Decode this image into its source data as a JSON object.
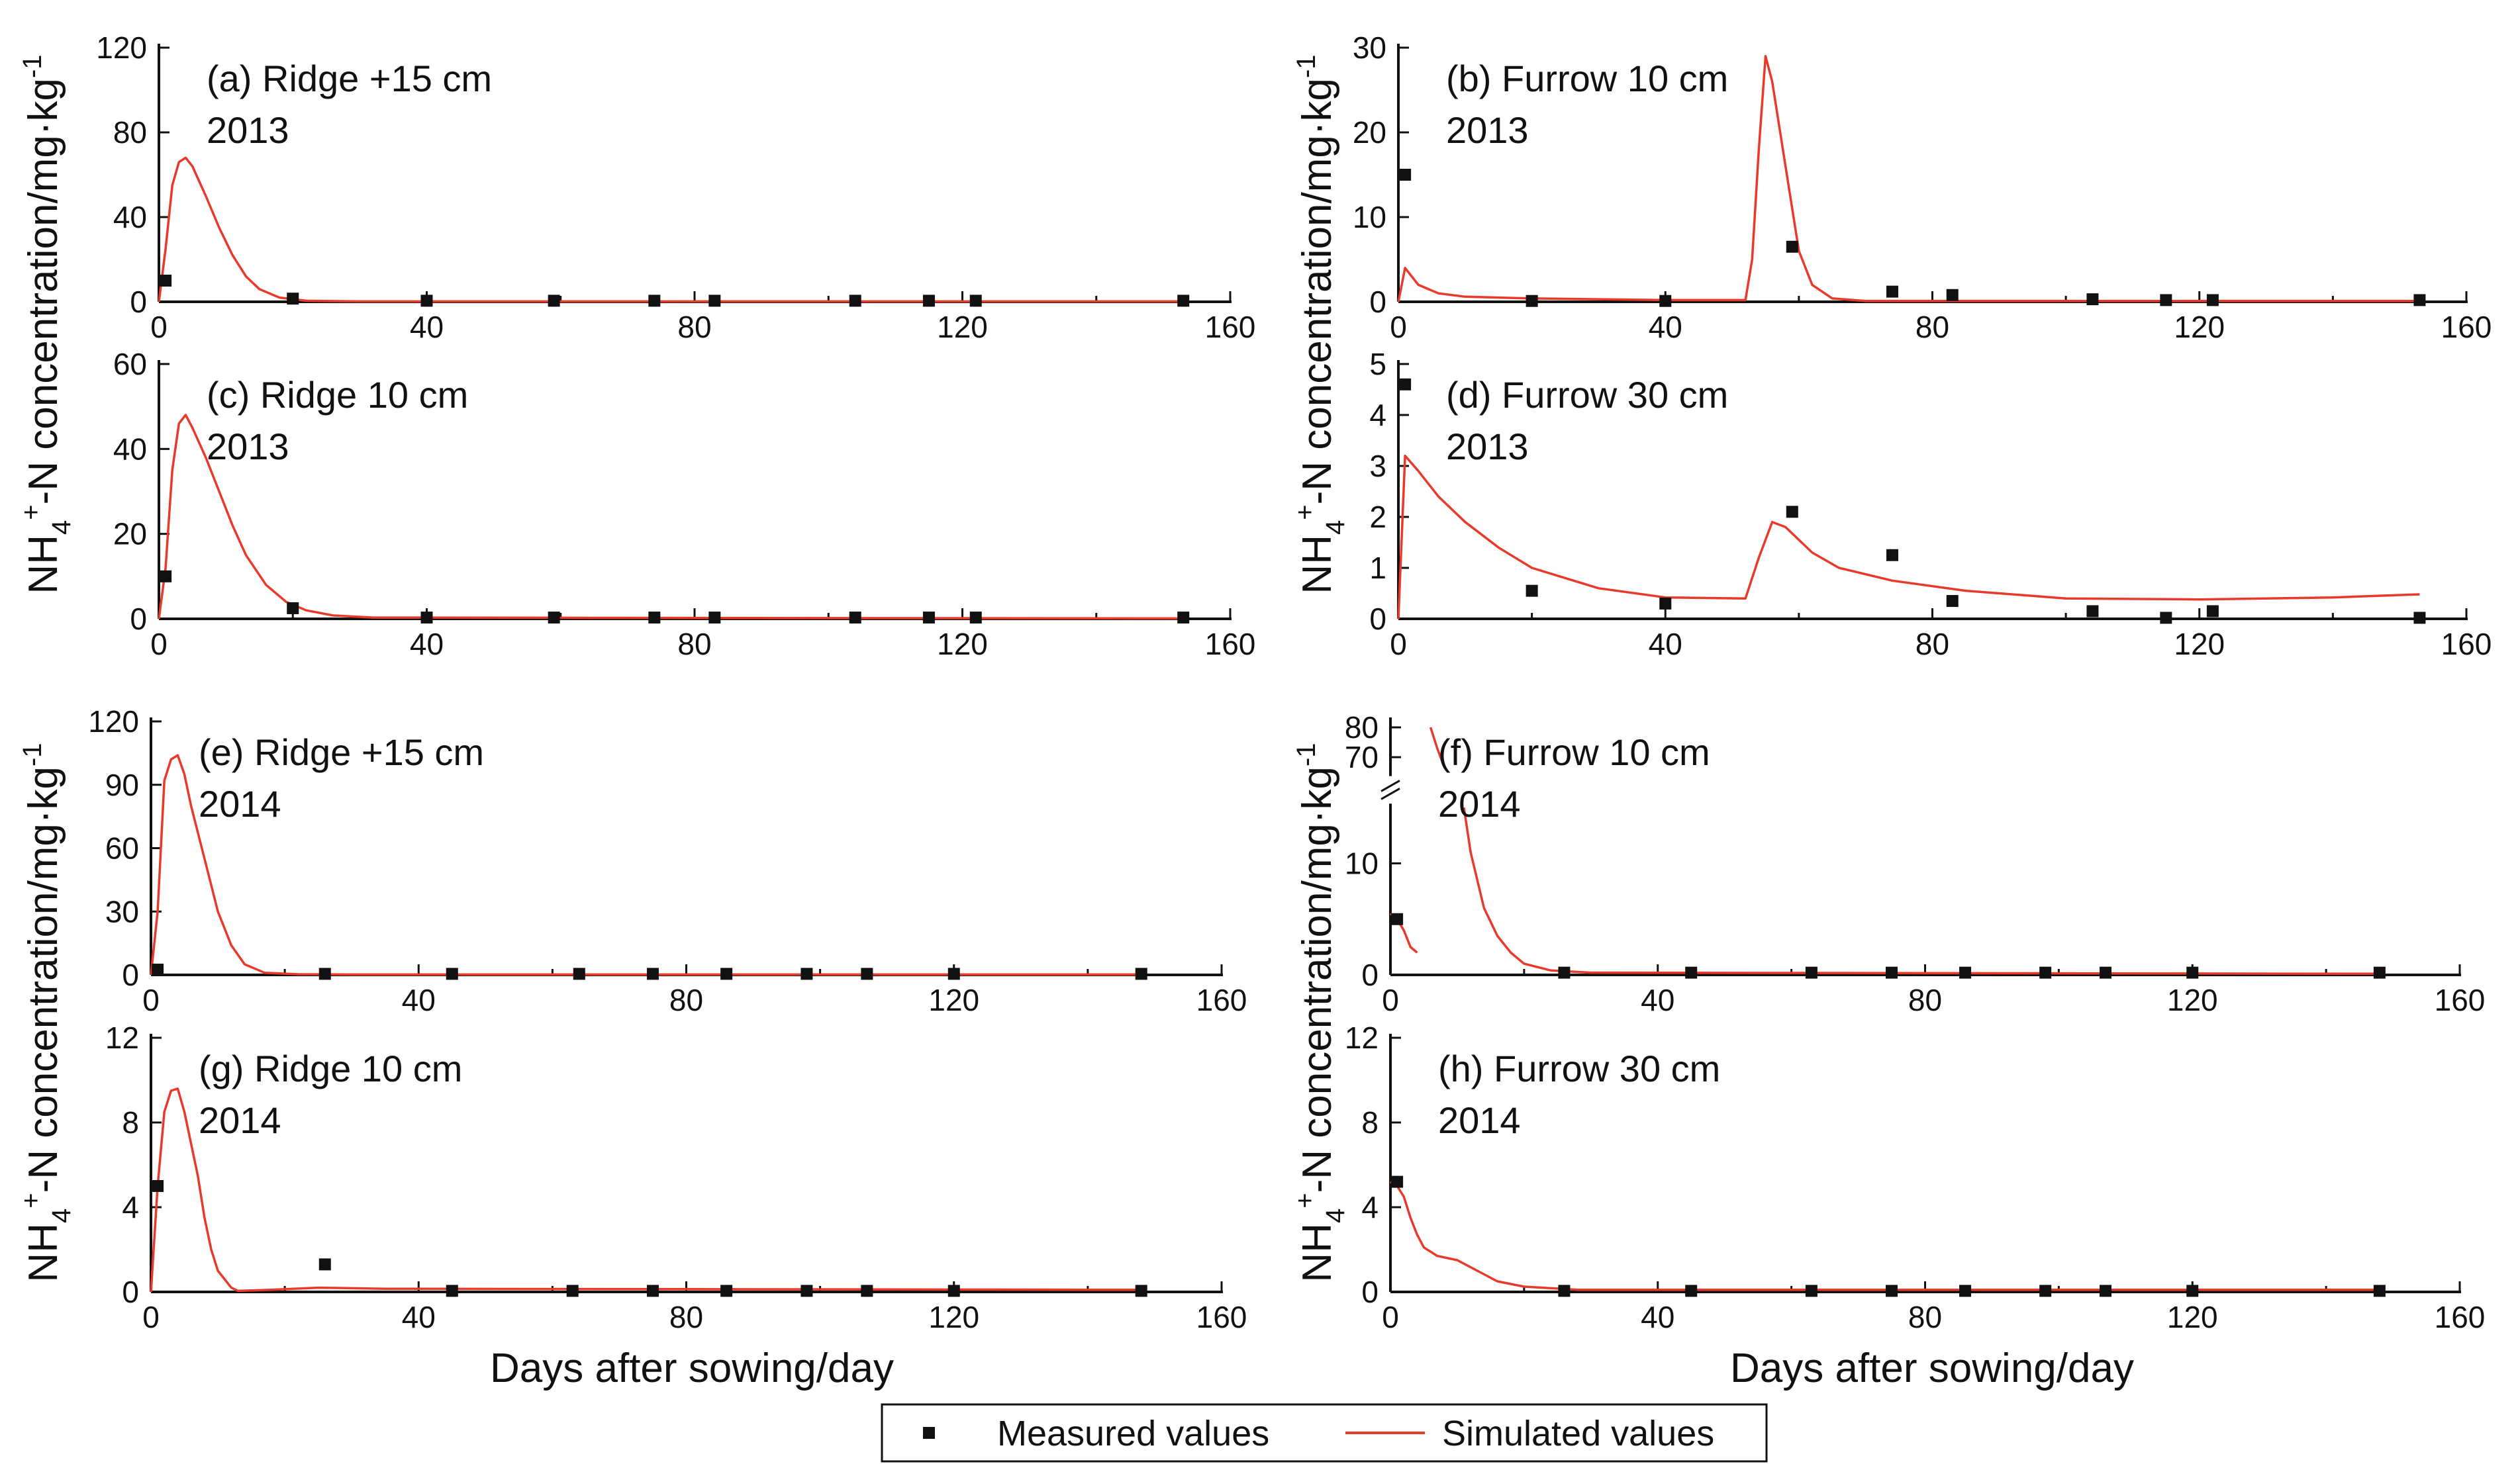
{
  "chart_data": {
    "type": "line",
    "title": "",
    "xlabel": "Days after sowing/day",
    "ylabel": "NH4+-N concentration/mg·kg-1",
    "ylabel_parts": {
      "nh": "NH",
      "sub4": "4",
      "sup_plus": "+",
      "rest": "-N concentration/mg·kg",
      "sup_minus1": "-1"
    },
    "xlim": [
      0,
      160
    ],
    "xticks": [
      "0",
      "40",
      "80",
      "120",
      "160"
    ],
    "legend": {
      "measured": "Measured values",
      "simulated": "Simulated values"
    },
    "colors": {
      "measured": "#111111",
      "simulated": "#e8392b",
      "axis": "#111111"
    },
    "panels": [
      {
        "id": "a",
        "label": "(a) Ridge +15 cm",
        "year": "2013",
        "ylim": [
          0,
          120
        ],
        "yticks": [
          "0",
          "40",
          "80",
          "120"
        ],
        "measured": [
          [
            1,
            10
          ],
          [
            20,
            1.5
          ],
          [
            40,
            0.5
          ],
          [
            59,
            0.5
          ],
          [
            74,
            0.5
          ],
          [
            83,
            0.5
          ],
          [
            104,
            0.5
          ],
          [
            115,
            0.5
          ],
          [
            122,
            0.5
          ],
          [
            153,
            0.5
          ]
        ],
        "simulated": [
          [
            0,
            0
          ],
          [
            1,
            25
          ],
          [
            2,
            55
          ],
          [
            3,
            66
          ],
          [
            4,
            68
          ],
          [
            5,
            64
          ],
          [
            7,
            50
          ],
          [
            9,
            35
          ],
          [
            11,
            22
          ],
          [
            13,
            12
          ],
          [
            15,
            6
          ],
          [
            18,
            2
          ],
          [
            22,
            0.5
          ],
          [
            30,
            0.2
          ],
          [
            153,
            0.2
          ]
        ]
      },
      {
        "id": "b",
        "label": "(b) Furrow 10 cm",
        "year": "2013",
        "ylim": [
          0,
          30
        ],
        "yticks": [
          "0",
          "10",
          "20",
          "30"
        ],
        "measured": [
          [
            1,
            15
          ],
          [
            20,
            0.1
          ],
          [
            40,
            0.1
          ],
          [
            59,
            6.5
          ],
          [
            74,
            1.2
          ],
          [
            83,
            0.8
          ],
          [
            104,
            0.3
          ],
          [
            115,
            0.2
          ],
          [
            122,
            0.2
          ],
          [
            153,
            0.2
          ]
        ],
        "simulated": [
          [
            0,
            0
          ],
          [
            1,
            4
          ],
          [
            3,
            2
          ],
          [
            6,
            1
          ],
          [
            10,
            0.6
          ],
          [
            20,
            0.4
          ],
          [
            40,
            0.2
          ],
          [
            52,
            0.2
          ],
          [
            53,
            5
          ],
          [
            54,
            18
          ],
          [
            55,
            29
          ],
          [
            56,
            26
          ],
          [
            58,
            16
          ],
          [
            60,
            6
          ],
          [
            62,
            2
          ],
          [
            65,
            0.4
          ],
          [
            70,
            0.1
          ],
          [
            153,
            0.1
          ]
        ]
      },
      {
        "id": "c",
        "label": "(c) Ridge 10 cm",
        "year": "2013",
        "ylim": [
          0,
          60
        ],
        "yticks": [
          "0",
          "20",
          "40",
          "60"
        ],
        "measured": [
          [
            1,
            10
          ],
          [
            20,
            2.5
          ],
          [
            40,
            0.3
          ],
          [
            59,
            0.3
          ],
          [
            74,
            0.3
          ],
          [
            83,
            0.3
          ],
          [
            104,
            0.3
          ],
          [
            115,
            0.3
          ],
          [
            122,
            0.3
          ],
          [
            153,
            0.3
          ]
        ],
        "simulated": [
          [
            0,
            0
          ],
          [
            1,
            12
          ],
          [
            2,
            35
          ],
          [
            3,
            46
          ],
          [
            4,
            48
          ],
          [
            5,
            45
          ],
          [
            7,
            38
          ],
          [
            9,
            30
          ],
          [
            11,
            22
          ],
          [
            13,
            15
          ],
          [
            16,
            8
          ],
          [
            19,
            4
          ],
          [
            22,
            2
          ],
          [
            26,
            0.8
          ],
          [
            32,
            0.3
          ],
          [
            153,
            0.1
          ]
        ]
      },
      {
        "id": "d",
        "label": "(d) Furrow 30 cm",
        "year": "2013",
        "ylim": [
          0,
          5
        ],
        "yticks": [
          "0",
          "1",
          "2",
          "3",
          "4",
          "5"
        ],
        "measured": [
          [
            1,
            4.6
          ],
          [
            20,
            0.55
          ],
          [
            40,
            0.3
          ],
          [
            59,
            2.1
          ],
          [
            74,
            1.25
          ],
          [
            83,
            0.35
          ],
          [
            104,
            0.15
          ],
          [
            115,
            0.02
          ],
          [
            122,
            0.15
          ],
          [
            153,
            0.02
          ]
        ],
        "simulated": [
          [
            0,
            0
          ],
          [
            1,
            3.2
          ],
          [
            3,
            2.9
          ],
          [
            6,
            2.4
          ],
          [
            10,
            1.9
          ],
          [
            15,
            1.4
          ],
          [
            20,
            1.0
          ],
          [
            25,
            0.8
          ],
          [
            30,
            0.6
          ],
          [
            40,
            0.42
          ],
          [
            52,
            0.4
          ],
          [
            54,
            1.2
          ],
          [
            56,
            1.9
          ],
          [
            58,
            1.8
          ],
          [
            62,
            1.3
          ],
          [
            66,
            1.0
          ],
          [
            74,
            0.75
          ],
          [
            85,
            0.55
          ],
          [
            100,
            0.4
          ],
          [
            120,
            0.38
          ],
          [
            140,
            0.42
          ],
          [
            153,
            0.48
          ]
        ]
      },
      {
        "id": "e",
        "label": "(e) Ridge +15 cm",
        "year": "2014",
        "ylim": [
          0,
          120
        ],
        "yticks": [
          "0",
          "30",
          "60",
          "90",
          "120"
        ],
        "measured": [
          [
            1,
            2.5
          ],
          [
            26,
            0.5
          ],
          [
            45,
            0.5
          ],
          [
            64,
            0.5
          ],
          [
            75,
            0.5
          ],
          [
            86,
            0.5
          ],
          [
            98,
            0.5
          ],
          [
            107,
            0.5
          ],
          [
            120,
            0.5
          ],
          [
            148,
            0.5
          ]
        ],
        "simulated": [
          [
            0,
            0
          ],
          [
            1,
            30
          ],
          [
            2,
            92
          ],
          [
            3,
            102
          ],
          [
            4,
            104
          ],
          [
            5,
            95
          ],
          [
            6,
            80
          ],
          [
            8,
            55
          ],
          [
            10,
            30
          ],
          [
            12,
            14
          ],
          [
            14,
            5
          ],
          [
            17,
            1
          ],
          [
            22,
            0.3
          ],
          [
            30,
            0.2
          ],
          [
            148,
            0.2
          ]
        ]
      },
      {
        "id": "f",
        "label": "(f) Furrow 10 cm",
        "year": "2014",
        "ylim": [
          0,
          80
        ],
        "yticks": [
          "0",
          "10",
          "70",
          "80"
        ],
        "axis_break": {
          "lower_max": 15,
          "upper_min": 65,
          "upper_max": 82
        },
        "measured": [
          [
            1,
            5
          ],
          [
            26,
            0.2
          ],
          [
            45,
            0.2
          ],
          [
            63,
            0.2
          ],
          [
            75,
            0.2
          ],
          [
            86,
            0.2
          ],
          [
            98,
            0.2
          ],
          [
            107,
            0.2
          ],
          [
            120,
            0.2
          ],
          [
            148,
            0.2
          ]
        ],
        "simulated": [
          [
            0,
            5.5
          ],
          [
            1,
            5
          ],
          [
            2,
            4
          ],
          [
            3,
            2.5
          ],
          [
            4,
            2
          ],
          [
            5,
            30
          ],
          [
            6,
            80
          ],
          [
            7,
            73
          ],
          [
            8,
            67
          ],
          [
            11,
            15
          ],
          [
            12,
            11
          ],
          [
            14,
            6
          ],
          [
            16,
            3.5
          ],
          [
            18,
            2
          ],
          [
            20,
            1
          ],
          [
            24,
            0.4
          ],
          [
            30,
            0.2
          ],
          [
            148,
            0.1
          ]
        ]
      },
      {
        "id": "g",
        "label": "(g) Ridge 10 cm",
        "year": "2014",
        "ylim": [
          0,
          12
        ],
        "yticks": [
          "0",
          "4",
          "8",
          "12"
        ],
        "measured": [
          [
            1,
            5
          ],
          [
            26,
            1.3
          ],
          [
            45,
            0.05
          ],
          [
            63,
            0.05
          ],
          [
            75,
            0.05
          ],
          [
            86,
            0.05
          ],
          [
            98,
            0.05
          ],
          [
            107,
            0.05
          ],
          [
            120,
            0.05
          ],
          [
            148,
            0.05
          ]
        ],
        "simulated": [
          [
            0,
            0
          ],
          [
            1,
            5
          ],
          [
            2,
            8.5
          ],
          [
            3,
            9.5
          ],
          [
            4,
            9.6
          ],
          [
            5,
            8.5
          ],
          [
            6,
            7
          ],
          [
            7,
            5.5
          ],
          [
            8,
            3.5
          ],
          [
            9,
            2
          ],
          [
            10,
            1
          ],
          [
            12,
            0.2
          ],
          [
            13,
            0.05
          ],
          [
            18,
            0.1
          ],
          [
            25,
            0.2
          ],
          [
            35,
            0.15
          ],
          [
            148,
            0.1
          ]
        ]
      },
      {
        "id": "h",
        "label": "(h) Furrow 30 cm",
        "year": "2014",
        "ylim": [
          0,
          12
        ],
        "yticks": [
          "0",
          "4",
          "8",
          "12"
        ],
        "measured": [
          [
            1,
            5.2
          ],
          [
            26,
            0.05
          ],
          [
            45,
            0.05
          ],
          [
            63,
            0.05
          ],
          [
            75,
            0.05
          ],
          [
            86,
            0.05
          ],
          [
            98,
            0.05
          ],
          [
            107,
            0.05
          ],
          [
            120,
            0.05
          ],
          [
            148,
            0.05
          ]
        ],
        "simulated": [
          [
            0,
            5.2
          ],
          [
            1,
            5
          ],
          [
            2,
            4.5
          ],
          [
            3,
            3.5
          ],
          [
            4,
            2.7
          ],
          [
            5,
            2.1
          ],
          [
            7,
            1.7
          ],
          [
            10,
            1.5
          ],
          [
            13,
            1.0
          ],
          [
            16,
            0.5
          ],
          [
            20,
            0.25
          ],
          [
            28,
            0.1
          ],
          [
            148,
            0.1
          ]
        ]
      }
    ]
  }
}
